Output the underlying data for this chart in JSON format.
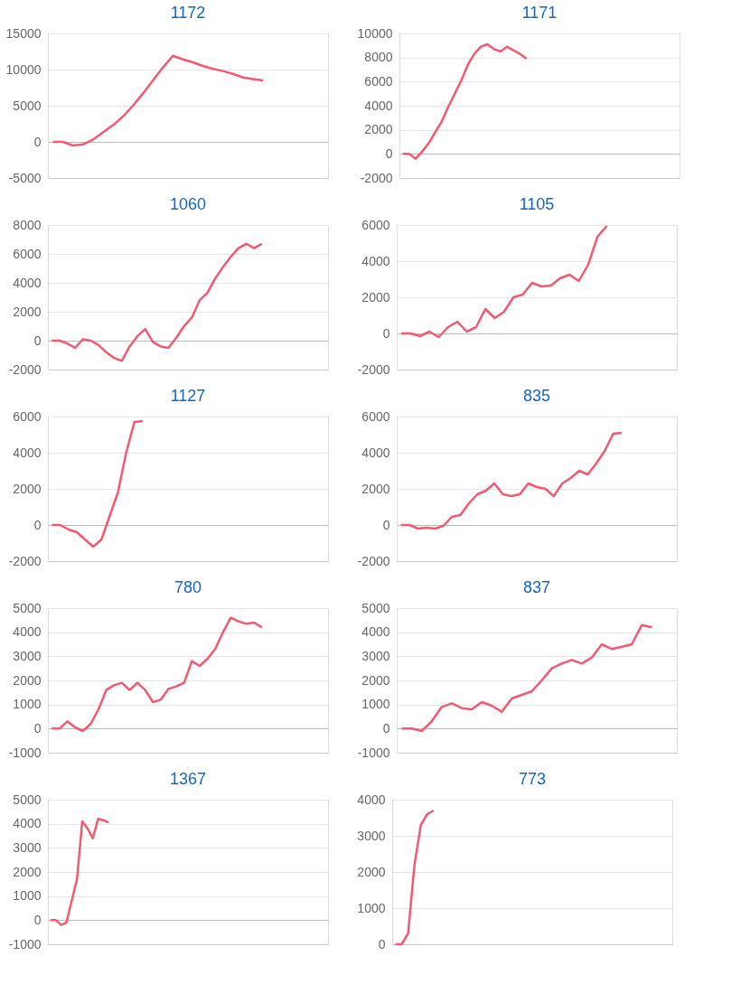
{
  "chart_data": [
    {
      "type": "line",
      "title": "1172",
      "ylim": [
        -5000,
        15000
      ],
      "yticks": [
        -5000,
        0,
        5000,
        10000,
        15000
      ],
      "grid": "y",
      "tick_labels": "y",
      "categories": [
        null,
        null,
        null,
        null,
        null,
        null,
        null,
        null,
        null,
        null,
        null,
        null,
        null,
        null,
        null,
        null,
        null,
        null,
        null,
        null,
        null,
        null,
        null,
        null,
        null,
        null,
        null,
        null
      ],
      "series": [
        {
          "color": "#f25a72",
          "values": [
            0,
            0,
            -500,
            -350,
            300,
            1300,
            2300,
            3500,
            5000,
            6700,
            8500,
            10300,
            11900,
            11400,
            11000,
            10500,
            10100,
            9800,
            9400,
            8900,
            8700,
            8500,
            null,
            null,
            null,
            null,
            null,
            null
          ]
        }
      ]
    },
    {
      "type": "line",
      "title": "1171",
      "ylim": [
        -2000,
        10000
      ],
      "yticks": [
        -2000,
        0,
        2000,
        4000,
        6000,
        8000,
        10000
      ],
      "grid": "y",
      "tick_labels": "y",
      "categories": [
        null,
        null,
        null,
        null,
        null,
        null,
        null,
        null,
        null,
        null,
        null,
        null,
        null,
        null,
        null,
        null,
        null,
        null,
        null,
        null,
        null,
        null,
        null,
        null,
        null,
        null,
        null,
        null,
        null,
        null,
        null,
        null,
        null,
        null,
        null,
        null,
        null,
        null,
        null,
        null,
        null,
        null,
        null
      ],
      "series": [
        {
          "color": "#f25a72",
          "values": [
            0,
            0,
            -400,
            200,
            900,
            1800,
            2700,
            3900,
            5000,
            6100,
            7400,
            8300,
            8900,
            9100,
            8700,
            8500,
            8900,
            8600,
            8300,
            7900,
            null,
            null,
            null,
            null,
            null,
            null,
            null,
            null,
            null,
            null,
            null,
            null,
            null,
            null,
            null,
            null,
            null,
            null,
            null,
            null,
            null,
            null,
            null
          ]
        }
      ]
    },
    {
      "type": "line",
      "title": "1060",
      "ylim": [
        -2000,
        8000
      ],
      "yticks": [
        -2000,
        0,
        2000,
        4000,
        6000,
        8000
      ],
      "grid": "y",
      "tick_labels": "y",
      "categories": [
        null,
        null,
        null,
        null,
        null,
        null,
        null,
        null,
        null,
        null,
        null,
        null,
        null,
        null,
        null,
        null,
        null,
        null,
        null,
        null,
        null,
        null,
        null,
        null,
        null,
        null,
        null,
        null,
        null,
        null,
        null,
        null,
        null,
        null,
        null,
        null
      ],
      "series": [
        {
          "color": "#f25a72",
          "values": [
            0,
            0,
            -200,
            -500,
            100,
            0,
            -300,
            -800,
            -1200,
            -1400,
            -400,
            300,
            800,
            -100,
            -400,
            -500,
            200,
            1000,
            1600,
            2800,
            3300,
            4300,
            5100,
            5800,
            6400,
            6700,
            6400,
            6700,
            null,
            null,
            null,
            null,
            null,
            null,
            null,
            null
          ]
        }
      ]
    },
    {
      "type": "line",
      "title": "1105",
      "ylim": [
        -2000,
        6000
      ],
      "yticks": [
        -2000,
        0,
        2000,
        4000,
        6000
      ],
      "grid": "y",
      "tick_labels": "y",
      "categories": [
        null,
        null,
        null,
        null,
        null,
        null,
        null,
        null,
        null,
        null,
        null,
        null,
        null,
        null,
        null,
        null,
        null,
        null,
        null,
        null,
        null,
        null,
        null,
        null,
        null,
        null,
        null,
        null,
        null,
        null
      ],
      "series": [
        {
          "color": "#f25a72",
          "values": [
            0,
            0,
            -150,
            100,
            -200,
            350,
            650,
            100,
            350,
            1350,
            850,
            1200,
            2000,
            2150,
            2800,
            2600,
            2650,
            3050,
            3250,
            2900,
            3800,
            5350,
            5950,
            null,
            null,
            null,
            null,
            null,
            null,
            null
          ]
        }
      ]
    },
    {
      "type": "line",
      "title": "1127",
      "ylim": [
        -2000,
        6000
      ],
      "yticks": [
        -2000,
        0,
        2000,
        4000,
        6000
      ],
      "grid": "y",
      "tick_labels": "y",
      "categories": [
        null,
        null,
        null,
        null,
        null,
        null,
        null,
        null,
        null,
        null,
        null,
        null,
        null,
        null,
        null,
        null,
        null,
        null,
        null,
        null,
        null,
        null,
        null,
        null,
        null,
        null,
        null,
        null,
        null,
        null,
        null,
        null,
        null,
        null
      ],
      "series": [
        {
          "color": "#f25a72",
          "values": [
            0,
            0,
            -250,
            -400,
            -800,
            -1200,
            -800,
            500,
            1800,
            4000,
            5700,
            5750,
            null,
            null,
            null,
            null,
            null,
            null,
            null,
            null,
            null,
            null,
            null,
            null,
            null,
            null,
            null,
            null,
            null,
            null,
            null,
            null,
            null,
            null
          ]
        }
      ]
    },
    {
      "type": "line",
      "title": "835",
      "ylim": [
        -2000,
        6000
      ],
      "yticks": [
        -2000,
        0,
        2000,
        4000,
        6000
      ],
      "grid": "y",
      "tick_labels": "y",
      "categories": [
        null,
        null,
        null,
        null,
        null,
        null,
        null,
        null,
        null,
        null,
        null,
        null,
        null,
        null,
        null,
        null,
        null,
        null,
        null,
        null,
        null,
        null,
        null,
        null,
        null,
        null,
        null,
        null,
        null,
        null,
        null,
        null,
        null
      ],
      "series": [
        {
          "color": "#f25a72",
          "values": [
            0,
            0,
            -200,
            -150,
            -200,
            -50,
            450,
            550,
            1200,
            1700,
            1900,
            2300,
            1700,
            1600,
            1700,
            2300,
            2100,
            2000,
            1600,
            2300,
            2600,
            3000,
            2800,
            3400,
            4100,
            5050,
            5100,
            null,
            null,
            null,
            null,
            null,
            null
          ]
        }
      ]
    },
    {
      "type": "line",
      "title": "780",
      "ylim": [
        -1000,
        5000
      ],
      "yticks": [
        -1000,
        0,
        1000,
        2000,
        3000,
        4000,
        5000
      ],
      "grid": "y",
      "tick_labels": "y",
      "categories": [
        null,
        null,
        null,
        null,
        null,
        null,
        null,
        null,
        null,
        null,
        null,
        null,
        null,
        null,
        null,
        null,
        null,
        null,
        null,
        null,
        null,
        null,
        null,
        null,
        null,
        null,
        null,
        null,
        null,
        null,
        null,
        null,
        null,
        null,
        null,
        null
      ],
      "series": [
        {
          "color": "#f25a72",
          "values": [
            0,
            0,
            300,
            50,
            -100,
            200,
            800,
            1600,
            1800,
            1900,
            1600,
            1900,
            1600,
            1100,
            1200,
            1650,
            1750,
            1900,
            2800,
            2600,
            2900,
            3300,
            4000,
            4600,
            4450,
            4350,
            4400,
            4200,
            null,
            null,
            null,
            null,
            null,
            null,
            null,
            null
          ]
        }
      ]
    },
    {
      "type": "line",
      "title": "837",
      "ylim": [
        -1000,
        5000
      ],
      "yticks": [
        -1000,
        0,
        1000,
        2000,
        3000,
        4000,
        5000
      ],
      "grid": "y",
      "tick_labels": "y",
      "categories": [
        null,
        null,
        null,
        null,
        null,
        null,
        null,
        null,
        null,
        null,
        null,
        null,
        null,
        null,
        null,
        null,
        null,
        null,
        null,
        null,
        null,
        null,
        null,
        null,
        null,
        null,
        null,
        null
      ],
      "series": [
        {
          "color": "#f25a72",
          "values": [
            0,
            0,
            -100,
            300,
            900,
            1050,
            850,
            800,
            1100,
            950,
            700,
            1250,
            1400,
            1550,
            2000,
            2500,
            2700,
            2850,
            2700,
            2950,
            3500,
            3300,
            3400,
            3500,
            4300,
            4200,
            null,
            null
          ]
        }
      ]
    },
    {
      "type": "line",
      "title": "1367",
      "ylim": [
        -1000,
        5000
      ],
      "yticks": [
        -1000,
        0,
        1000,
        2000,
        3000,
        4000,
        5000
      ],
      "grid": "y",
      "tick_labels": "y",
      "categories": [
        null,
        null,
        null,
        null,
        null,
        null,
        null,
        null,
        null,
        null,
        null,
        null,
        null,
        null,
        null,
        null,
        null,
        null,
        null,
        null,
        null,
        null,
        null,
        null,
        null,
        null,
        null,
        null,
        null,
        null,
        null,
        null,
        null,
        null,
        null,
        null,
        null,
        null,
        null,
        null,
        null,
        null,
        null,
        null,
        null,
        null,
        null,
        null,
        null,
        null,
        null,
        null,
        null
      ],
      "series": [
        {
          "color": "#f25a72",
          "values": [
            0,
            0,
            -200,
            -100,
            800,
            1700,
            4100,
            3800,
            3400,
            4200,
            4150,
            4050,
            null,
            null,
            null,
            null,
            null,
            null,
            null,
            null,
            null,
            null,
            null,
            null,
            null,
            null,
            null,
            null,
            null,
            null,
            null,
            null,
            null,
            null,
            null,
            null,
            null,
            null,
            null,
            null,
            null,
            null,
            null,
            null,
            null,
            null,
            null,
            null,
            null,
            null,
            null,
            null,
            null
          ]
        }
      ]
    },
    {
      "type": "line",
      "title": "773",
      "ylim": [
        0,
        4000
      ],
      "yticks": [
        0,
        1000,
        2000,
        3000,
        4000
      ],
      "grid": "y",
      "tick_labels": "y",
      "categories": [
        null,
        null,
        null,
        null,
        null,
        null,
        null,
        null,
        null,
        null,
        null,
        null,
        null,
        null,
        null,
        null,
        null,
        null,
        null,
        null,
        null,
        null,
        null,
        null,
        null,
        null,
        null,
        null,
        null,
        null,
        null,
        null,
        null,
        null,
        null,
        null,
        null,
        null,
        null,
        null,
        null,
        null,
        null,
        null
      ],
      "series": [
        {
          "color": "#f25a72",
          "values": [
            0,
            0,
            300,
            2200,
            3300,
            3600,
            3700,
            null,
            null,
            null,
            null,
            null,
            null,
            null,
            null,
            null,
            null,
            null,
            null,
            null,
            null,
            null,
            null,
            null,
            null,
            null,
            null,
            null,
            null,
            null,
            null,
            null,
            null,
            null,
            null,
            null,
            null,
            null,
            null,
            null,
            null,
            null,
            null,
            null
          ]
        }
      ]
    }
  ]
}
